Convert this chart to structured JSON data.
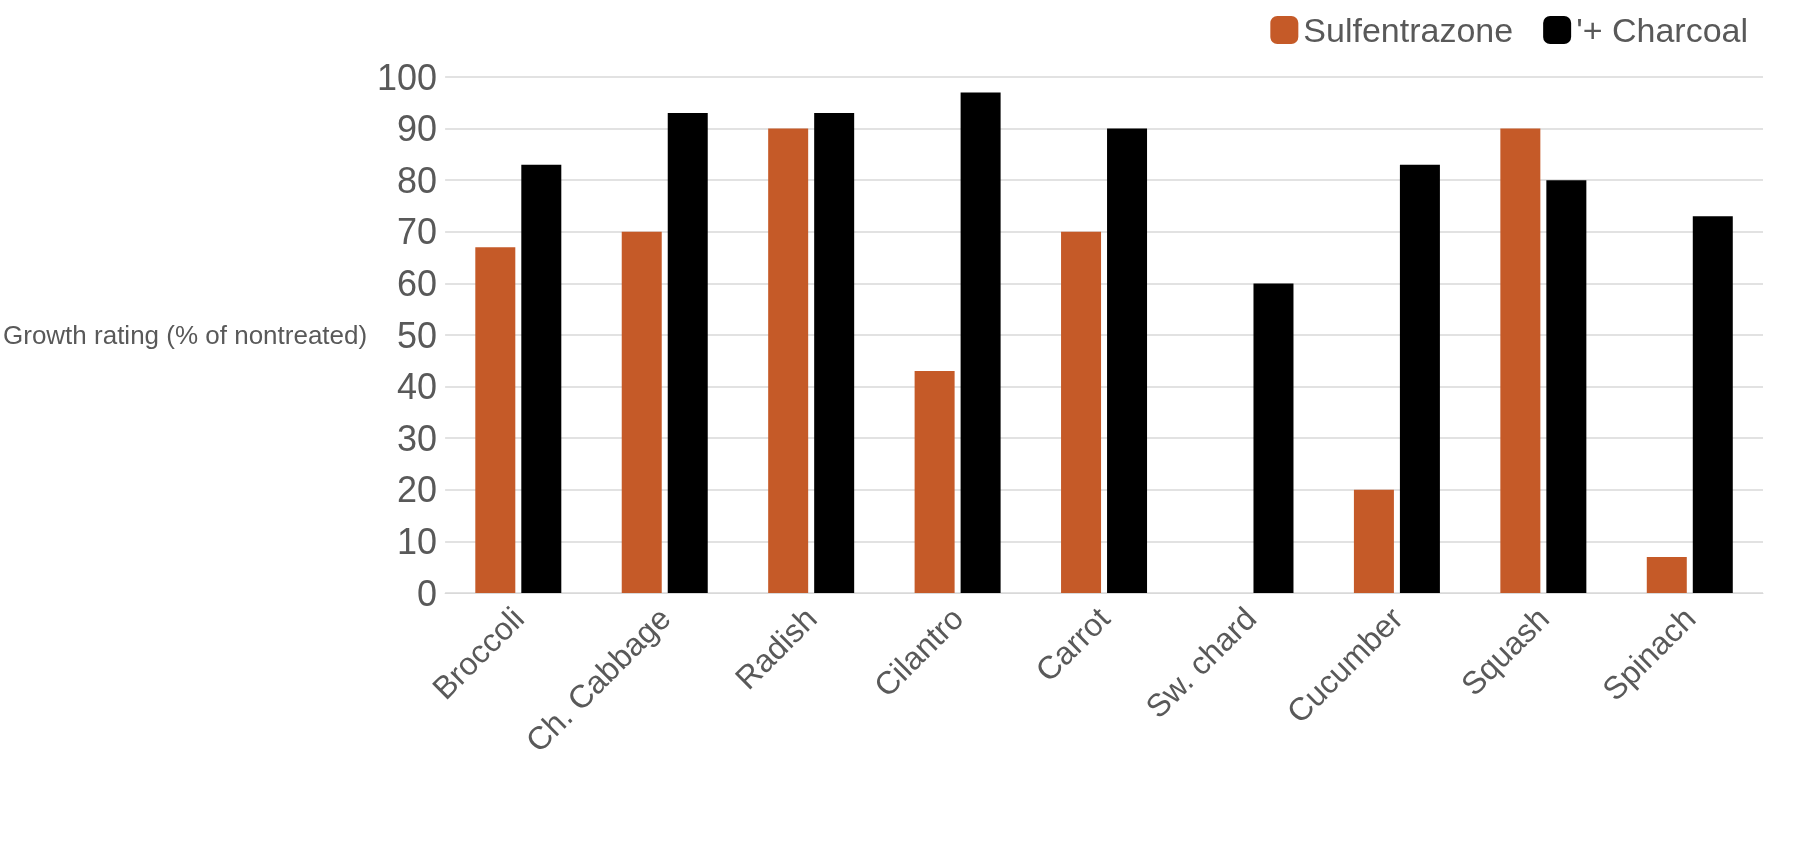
{
  "chart_data": {
    "type": "bar",
    "ylabel": "Growth rating (% of nontreated)",
    "categories": [
      "Broccoli",
      "Ch. Cabbage",
      "Radish",
      "Cilantro",
      "Carrot",
      "Sw. chard",
      "Cucumber",
      "Squash",
      "Spinach"
    ],
    "series": [
      {
        "name": "Sulfentrazone",
        "color": "#c55a28",
        "values": [
          67,
          70,
          90,
          43,
          70,
          0,
          20,
          90,
          7
        ]
      },
      {
        "name": "'+ Charcoal",
        "color": "#000000",
        "values": [
          83,
          93,
          93,
          97,
          90,
          60,
          83,
          80,
          73
        ]
      }
    ],
    "ylim": [
      0,
      100
    ],
    "yticks": [
      0,
      10,
      20,
      30,
      40,
      50,
      60,
      70,
      80,
      90,
      100
    ],
    "grid": "y",
    "legend": "top right"
  }
}
